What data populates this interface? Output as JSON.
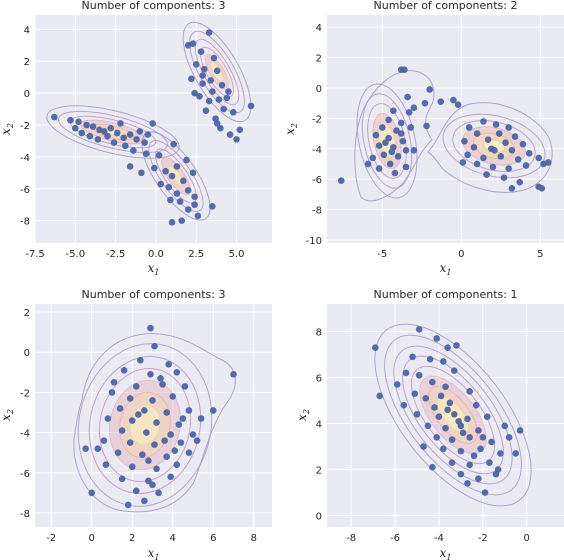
{
  "figure": {
    "background": "#ffffff",
    "axes_facecolor": "#eaeaf2",
    "grid_color": "#ffffff",
    "point_color": "#4c63a8",
    "contour_palette": [
      "#a594c9",
      "#bd8fc4",
      "#d897b6",
      "#e8ad9e",
      "#f2c98e",
      "#f6e6a6",
      "#fbf3c6"
    ]
  },
  "chart_data": [
    {
      "type": "scatter",
      "title": "Number of components: 3",
      "xlabel_main": "x",
      "xlabel_sub": "1",
      "ylabel_main": "x",
      "ylabel_sub": "2",
      "xlim": [
        -7.5,
        7.2
      ],
      "ylim": [
        -9.4,
        4.9
      ],
      "xticks": [
        -7.5,
        -5.0,
        -2.5,
        0.0,
        2.5,
        5.0
      ],
      "xtick_labels": [
        "-7.5",
        "-5.0",
        "-2.5",
        "0.0",
        "2.5",
        "5.0"
      ],
      "yticks": [
        -8,
        -6,
        -4,
        -2,
        0,
        2,
        4
      ],
      "ytick_labels": [
        "-8",
        "-6",
        "-4",
        "-2",
        "0",
        "2",
        "4"
      ],
      "grid": true,
      "points": [
        [
          2.0,
          3.0
        ],
        [
          2.3,
          3.1
        ],
        [
          3.3,
          3.8
        ],
        [
          2.8,
          2.6
        ],
        [
          3.6,
          2.2
        ],
        [
          2.5,
          1.8
        ],
        [
          3.0,
          1.5
        ],
        [
          3.8,
          1.4
        ],
        [
          2.2,
          0.9
        ],
        [
          2.9,
          0.6
        ],
        [
          3.4,
          0.8
        ],
        [
          4.1,
          0.5
        ],
        [
          2.7,
          -0.2
        ],
        [
          3.3,
          -0.5
        ],
        [
          3.9,
          -0.4
        ],
        [
          4.5,
          0.1
        ],
        [
          3.1,
          -1.1
        ],
        [
          3.7,
          -1.6
        ],
        [
          4.2,
          -1.0
        ],
        [
          4.8,
          -1.2
        ],
        [
          4.0,
          -2.2
        ],
        [
          4.6,
          -2.6
        ],
        [
          5.0,
          -2.9
        ],
        [
          5.2,
          -2.3
        ],
        [
          5.9,
          -0.8
        ],
        [
          2.4,
          0.0
        ],
        [
          3.5,
          0.1
        ],
        [
          4.4,
          -0.3
        ],
        [
          3.8,
          -1.9
        ],
        [
          2.9,
          1.1
        ],
        [
          -6.3,
          -1.5
        ],
        [
          -5.3,
          -1.7
        ],
        [
          -4.8,
          -1.8
        ],
        [
          -4.3,
          -2.0
        ],
        [
          -3.9,
          -2.1
        ],
        [
          -3.5,
          -2.3
        ],
        [
          -4.6,
          -2.5
        ],
        [
          -3.2,
          -2.4
        ],
        [
          -2.8,
          -2.2
        ],
        [
          -2.4,
          -2.5
        ],
        [
          -2.0,
          -2.8
        ],
        [
          -1.6,
          -2.6
        ],
        [
          -1.2,
          -2.9
        ],
        [
          -3.6,
          -2.9
        ],
        [
          -2.6,
          -3.1
        ],
        [
          -1.9,
          -3.3
        ],
        [
          -2.2,
          -1.9
        ],
        [
          -1.0,
          -2.4
        ],
        [
          -0.7,
          -3.1
        ],
        [
          -0.2,
          -1.9
        ],
        [
          -5.0,
          -2.2
        ],
        [
          -4.1,
          -2.7
        ],
        [
          -1.4,
          -3.6
        ],
        [
          -0.5,
          -2.6
        ],
        [
          -3.0,
          -2.7
        ],
        [
          -0.6,
          -3.8
        ],
        [
          0.2,
          -3.9
        ],
        [
          -0.1,
          -4.7
        ],
        [
          0.6,
          -4.9
        ],
        [
          1.3,
          -4.6
        ],
        [
          1.0,
          -5.2
        ],
        [
          1.7,
          -5.5
        ],
        [
          0.8,
          -5.9
        ],
        [
          1.3,
          -6.3
        ],
        [
          2.0,
          -6.1
        ],
        [
          2.4,
          -6.5
        ],
        [
          1.5,
          -6.8
        ],
        [
          2.0,
          -7.3
        ],
        [
          2.6,
          -7.7
        ],
        [
          1.6,
          -8.0
        ],
        [
          1.0,
          -8.1
        ],
        [
          3.5,
          -7.1
        ],
        [
          2.3,
          -5.0
        ],
        [
          0.3,
          -5.7
        ],
        [
          -0.9,
          -5.0
        ],
        [
          0.9,
          -6.7
        ],
        [
          1.9,
          -4.2
        ],
        [
          -1.6,
          -4.6
        ],
        [
          1.1,
          -3.2
        ],
        [
          2.4,
          -7.0
        ]
      ]
    },
    {
      "type": "scatter",
      "title": "Number of components: 2",
      "xlabel_main": "x",
      "xlabel_sub": "1",
      "ylabel_main": "x",
      "ylabel_sub": "2",
      "xlim": [
        -8.5,
        6.5
      ],
      "ylim": [
        -10.2,
        4.8
      ],
      "xticks": [
        -5,
        0,
        5
      ],
      "xtick_labels": [
        "-5",
        "0",
        "5"
      ],
      "yticks": [
        -10,
        -8,
        -6,
        -4,
        -2,
        0,
        2,
        4
      ],
      "ytick_labels": [
        "-10",
        "-8",
        "-6",
        "-4",
        "-2",
        "0",
        "2",
        "4"
      ],
      "grid": true,
      "points": [
        [
          -3.8,
          1.2
        ],
        [
          -3.6,
          1.2
        ],
        [
          -3.4,
          -0.6
        ],
        [
          -2.0,
          -0.1
        ],
        [
          -1.3,
          -0.9
        ],
        [
          -2.3,
          -1.0
        ],
        [
          -3.0,
          -1.3
        ],
        [
          -4.3,
          -1.5
        ],
        [
          -3.3,
          -1.6
        ],
        [
          -4.6,
          -2.1
        ],
        [
          -3.8,
          -2.3
        ],
        [
          -5.0,
          -2.6
        ],
        [
          -4.1,
          -2.8
        ],
        [
          -3.2,
          -2.6
        ],
        [
          -5.4,
          -3.1
        ],
        [
          -4.6,
          -3.3
        ],
        [
          -3.7,
          -3.5
        ],
        [
          -5.2,
          -3.8
        ],
        [
          -4.3,
          -3.9
        ],
        [
          -3.5,
          -4.1
        ],
        [
          -4.9,
          -4.4
        ],
        [
          -4.0,
          -4.5
        ],
        [
          -5.6,
          -4.6
        ],
        [
          -3.0,
          -4.1
        ],
        [
          -4.5,
          -5.0
        ],
        [
          -5.2,
          -5.3
        ],
        [
          -3.5,
          -5.2
        ],
        [
          -4.2,
          -5.6
        ],
        [
          -5.9,
          -5.0
        ],
        [
          -7.6,
          -6.1
        ],
        [
          -3.8,
          -3.0
        ],
        [
          -4.8,
          -3.6
        ],
        [
          -2.2,
          -2.5
        ],
        [
          -4.4,
          -4.2
        ],
        [
          -0.2,
          -1.1
        ],
        [
          -0.5,
          -0.8
        ],
        [
          1.4,
          -2.2
        ],
        [
          0.5,
          -2.6
        ],
        [
          2.2,
          -2.4
        ],
        [
          3.0,
          -2.6
        ],
        [
          1.0,
          -3.0
        ],
        [
          2.4,
          -3.0
        ],
        [
          3.4,
          -3.2
        ],
        [
          0.2,
          -3.5
        ],
        [
          1.7,
          -3.4
        ],
        [
          2.8,
          -3.6
        ],
        [
          3.9,
          -3.7
        ],
        [
          0.8,
          -3.9
        ],
        [
          1.9,
          -4.0
        ],
        [
          3.2,
          -4.1
        ],
        [
          4.3,
          -4.3
        ],
        [
          0.4,
          -4.4
        ],
        [
          1.4,
          -4.6
        ],
        [
          2.5,
          -4.5
        ],
        [
          3.6,
          -4.7
        ],
        [
          4.9,
          -4.6
        ],
        [
          1.0,
          -5.0
        ],
        [
          2.0,
          -5.2
        ],
        [
          3.0,
          -5.3
        ],
        [
          4.1,
          -5.1
        ],
        [
          5.2,
          -5.0
        ],
        [
          1.6,
          -5.7
        ],
        [
          2.7,
          -5.9
        ],
        [
          3.7,
          -6.2
        ],
        [
          4.9,
          -6.5
        ],
        [
          5.1,
          -6.6
        ],
        [
          3.2,
          -6.6
        ],
        [
          5.5,
          -4.9
        ],
        [
          2.1,
          -4.1
        ],
        [
          0.1,
          -4.9
        ]
      ]
    },
    {
      "type": "scatter",
      "title": "Number of components: 3",
      "xlabel_main": "x",
      "xlabel_sub": "1",
      "ylabel_main": "x",
      "ylabel_sub": "2",
      "xlim": [
        -2.8,
        8.9
      ],
      "ylim": [
        -8.7,
        2.4
      ],
      "xticks": [
        -2,
        0,
        2,
        4,
        6,
        8
      ],
      "xtick_labels": [
        "-2",
        "0",
        "2",
        "4",
        "6",
        "8"
      ],
      "yticks": [
        -8,
        -6,
        -4,
        -2,
        0,
        2
      ],
      "ytick_labels": [
        "-8",
        "-6",
        "-4",
        "-2",
        "0",
        "2"
      ],
      "grid": true,
      "points": [
        [
          2.9,
          1.2
        ],
        [
          3.1,
          0.3
        ],
        [
          2.4,
          -0.4
        ],
        [
          3.8,
          -0.6
        ],
        [
          1.6,
          -0.9
        ],
        [
          2.9,
          -1.1
        ],
        [
          4.2,
          -1.0
        ],
        [
          1.1,
          -1.5
        ],
        [
          2.2,
          -1.7
        ],
        [
          3.5,
          -1.6
        ],
        [
          4.6,
          -1.7
        ],
        [
          1.9,
          -2.3
        ],
        [
          3.0,
          -2.4
        ],
        [
          4.0,
          -2.2
        ],
        [
          1.4,
          -2.8
        ],
        [
          2.6,
          -2.9
        ],
        [
          3.7,
          -3.0
        ],
        [
          4.8,
          -2.9
        ],
        [
          0.8,
          -3.3
        ],
        [
          2.0,
          -3.4
        ],
        [
          3.2,
          -3.5
        ],
        [
          4.3,
          -3.6
        ],
        [
          5.4,
          -3.3
        ],
        [
          1.5,
          -3.9
        ],
        [
          2.7,
          -4.0
        ],
        [
          3.9,
          -4.1
        ],
        [
          5.0,
          -4.1
        ],
        [
          0.6,
          -4.4
        ],
        [
          1.9,
          -4.5
        ],
        [
          3.1,
          -4.6
        ],
        [
          4.4,
          -4.5
        ],
        [
          1.3,
          -5.0
        ],
        [
          2.5,
          -5.1
        ],
        [
          3.7,
          -5.2
        ],
        [
          4.8,
          -5.0
        ],
        [
          0.7,
          -5.6
        ],
        [
          2.0,
          -5.7
        ],
        [
          3.2,
          -5.8
        ],
        [
          4.2,
          -5.6
        ],
        [
          1.5,
          -6.3
        ],
        [
          2.8,
          -6.4
        ],
        [
          3.9,
          -6.2
        ],
        [
          2.2,
          -6.9
        ],
        [
          3.3,
          -7.0
        ],
        [
          2.6,
          -7.4
        ],
        [
          1.8,
          -7.6
        ],
        [
          0.0,
          -7.0
        ],
        [
          -0.3,
          -4.8
        ],
        [
          0.3,
          -4.8
        ],
        [
          6.0,
          -2.9
        ],
        [
          7.0,
          -1.1
        ],
        [
          5.2,
          -4.4
        ],
        [
          3.6,
          -4.4
        ],
        [
          2.3,
          -3.1
        ],
        [
          3.0,
          -6.6
        ],
        [
          4.5,
          -3.3
        ],
        [
          1.0,
          -2.0
        ],
        [
          3.4,
          -1.3
        ],
        [
          2.8,
          -5.4
        ],
        [
          4.1,
          -4.9
        ]
      ]
    },
    {
      "type": "scatter",
      "title": "Number of components: 1",
      "xlabel_main": "x",
      "xlabel_sub": "1",
      "ylabel_main": "x",
      "ylabel_sub": "2",
      "xlim": [
        -9.1,
        1.7
      ],
      "ylim": [
        -0.5,
        9.2
      ],
      "xticks": [
        -8,
        -6,
        -4,
        -2,
        0
      ],
      "xtick_labels": [
        "-8",
        "-6",
        "-4",
        "-2",
        "0"
      ],
      "yticks": [
        0,
        2,
        4,
        6,
        8
      ],
      "ytick_labels": [
        "0",
        "2",
        "4",
        "6",
        "8"
      ],
      "grid": true,
      "points": [
        [
          -4.9,
          8.1
        ],
        [
          -6.9,
          7.3
        ],
        [
          -4.1,
          7.7
        ],
        [
          -3.6,
          7.3
        ],
        [
          -3.2,
          7.4
        ],
        [
          -5.2,
          6.9
        ],
        [
          -4.4,
          6.8
        ],
        [
          -3.8,
          6.7
        ],
        [
          -5.5,
          6.2
        ],
        [
          -4.9,
          6.1
        ],
        [
          -3.3,
          6.3
        ],
        [
          -5.9,
          5.7
        ],
        [
          -4.3,
          5.8
        ],
        [
          -3.7,
          5.6
        ],
        [
          -6.7,
          5.2
        ],
        [
          -5.1,
          5.3
        ],
        [
          -4.6,
          5.1
        ],
        [
          -3.9,
          5.2
        ],
        [
          -2.6,
          5.4
        ],
        [
          -5.6,
          4.8
        ],
        [
          -4.2,
          4.7
        ],
        [
          -3.5,
          4.9
        ],
        [
          -2.3,
          4.8
        ],
        [
          -5.0,
          4.4
        ],
        [
          -4.0,
          4.3
        ],
        [
          -3.3,
          4.4
        ],
        [
          -2.7,
          4.2
        ],
        [
          -1.8,
          4.3
        ],
        [
          -4.5,
          3.9
        ],
        [
          -3.7,
          3.8
        ],
        [
          -3.0,
          3.9
        ],
        [
          -2.2,
          3.7
        ],
        [
          -1.0,
          3.9
        ],
        [
          -4.1,
          3.4
        ],
        [
          -3.4,
          3.3
        ],
        [
          -2.6,
          3.4
        ],
        [
          -1.6,
          3.2
        ],
        [
          -0.8,
          3.4
        ],
        [
          -0.3,
          3.7
        ],
        [
          -3.8,
          2.9
        ],
        [
          -3.0,
          2.8
        ],
        [
          -2.1,
          2.9
        ],
        [
          -1.2,
          2.7
        ],
        [
          -0.5,
          2.7
        ],
        [
          -3.4,
          2.3
        ],
        [
          -2.6,
          2.2
        ],
        [
          -1.7,
          2.3
        ],
        [
          -3.0,
          1.8
        ],
        [
          -2.2,
          1.6
        ],
        [
          -1.4,
          1.8
        ],
        [
          -2.7,
          1.4
        ],
        [
          -1.9,
          1.0
        ],
        [
          -4.3,
          2.1
        ],
        [
          -3.1,
          4.1
        ],
        [
          -2.4,
          2.6
        ],
        [
          -2.9,
          3.6
        ],
        [
          -3.6,
          4.6
        ],
        [
          -1.3,
          2.0
        ],
        [
          -4.7,
          3.0
        ],
        [
          -2.0,
          3.4
        ]
      ]
    }
  ]
}
